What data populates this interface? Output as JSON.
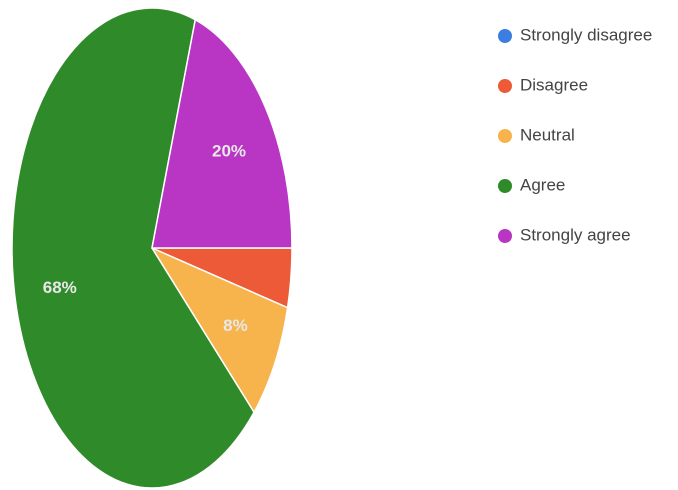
{
  "chart_data": {
    "type": "pie",
    "categories": [
      "Strongly disagree",
      "Disagree",
      "Neutral",
      "Agree",
      "Strongly agree"
    ],
    "values": [
      0,
      4,
      8,
      68,
      20
    ],
    "value_labels": [
      null,
      null,
      "8%",
      "68%",
      "20%"
    ],
    "colors": [
      "#3b7de0",
      "#ec5a38",
      "#f7b34c",
      "#2f8a2a",
      "#b935c4"
    ],
    "legend": "right"
  }
}
